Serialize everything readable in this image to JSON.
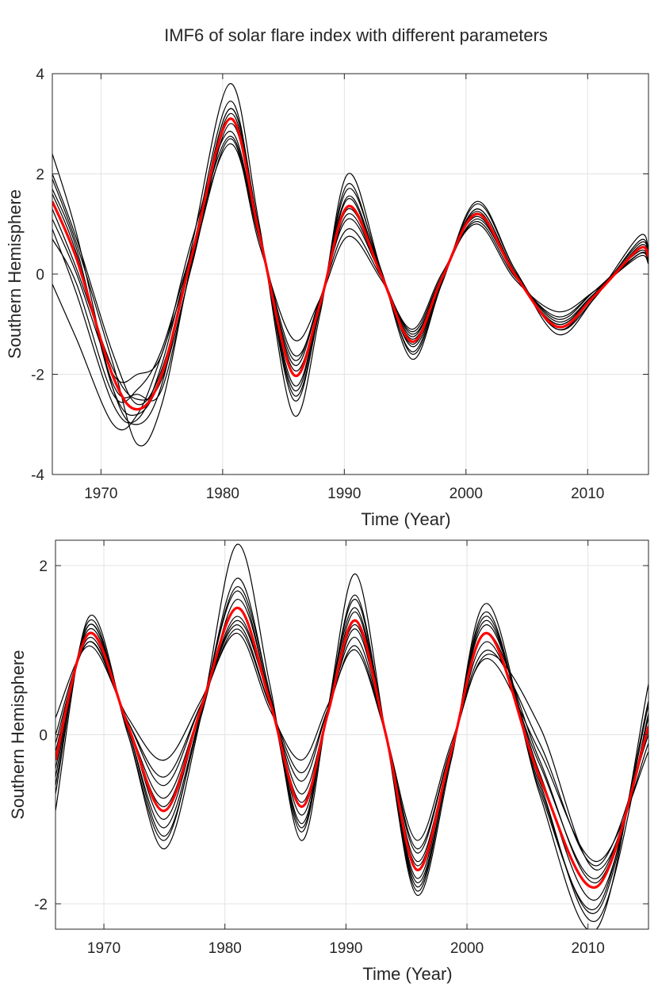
{
  "figure_title": "IMF6 of solar flare index with different parameters",
  "chart_data": [
    {
      "type": "line",
      "xlabel": "Time (Year)",
      "ylabel": "Southern Hemisphere",
      "xlim": [
        1966,
        2015
      ],
      "ylim": [
        -4,
        4
      ],
      "xticks": [
        1970,
        1980,
        1990,
        2000,
        2010
      ],
      "xtick_labels": [
        "1970",
        "1980",
        "1990",
        "2000",
        "2010"
      ],
      "yticks": [
        -4,
        -2,
        0,
        2,
        4
      ],
      "ytick_labels": [
        "-4",
        "-2",
        "0",
        "2",
        "4"
      ],
      "grid": true,
      "colors": {
        "ensemble": "#000000",
        "mean": "#ff0000"
      },
      "mean_series": {
        "x": [
          1966,
          1968,
          1971,
          1973,
          1975,
          1977.5,
          1980.6,
          1983,
          1985.8,
          1988,
          1990.3,
          1993,
          1995.6,
          1998,
          2000.9,
          2004,
          2007.5,
          2010.5,
          2014.2,
          2015
        ],
        "y": [
          1.45,
          0.3,
          -2.05,
          -2.7,
          -2.0,
          0.4,
          3.1,
          0.8,
          -2.0,
          -0.6,
          1.35,
          0.0,
          -1.35,
          -0.1,
          1.2,
          0.0,
          -1.05,
          -0.45,
          0.5,
          0.35
        ]
      },
      "ensemble_series": [
        {
          "y": [
            1.45,
            0.3,
            -2.05,
            -2.7,
            -2.0,
            0.4,
            3.1,
            0.8,
            -2.0,
            -0.6,
            1.35,
            0.0,
            -1.35,
            -0.1,
            1.2,
            0.0,
            -1.05,
            -0.45,
            0.5,
            0.35
          ]
        },
        {
          "y": [
            2.4,
            0.8,
            -2.3,
            -3.0,
            -2.2,
            0.6,
            3.8,
            1.0,
            -2.8,
            -0.8,
            2.0,
            0.1,
            -1.7,
            -0.2,
            1.45,
            0.1,
            -1.2,
            -0.5,
            0.75,
            0.5
          ]
        },
        {
          "y": [
            -0.2,
            -1.3,
            -3.0,
            -2.8,
            -1.6,
            0.3,
            2.7,
            0.6,
            -1.3,
            -0.5,
            0.75,
            -0.1,
            -1.1,
            0.0,
            1.0,
            -0.1,
            -0.75,
            -0.35,
            0.35,
            0.2
          ]
        },
        {
          "y": [
            0.7,
            -0.2,
            -2.4,
            -2.3,
            -1.5,
            0.5,
            2.6,
            0.7,
            -1.8,
            -0.5,
            1.1,
            0.0,
            -1.2,
            -0.1,
            1.1,
            0.0,
            -0.95,
            -0.4,
            0.4,
            0.3
          ]
        },
        {
          "y": [
            1.9,
            0.6,
            -1.8,
            -3.4,
            -2.6,
            0.3,
            3.3,
            0.9,
            -2.5,
            -0.7,
            1.7,
            0.1,
            -1.6,
            -0.2,
            1.4,
            0.1,
            -1.1,
            -0.5,
            0.65,
            0.45
          ]
        },
        {
          "y": [
            1.1,
            0.0,
            -2.0,
            -2.0,
            -1.6,
            0.7,
            2.85,
            0.75,
            -1.6,
            -0.55,
            1.2,
            0.0,
            -1.25,
            -0.05,
            1.15,
            0.0,
            -0.9,
            -0.35,
            0.45,
            0.3
          ]
        },
        {
          "y": [
            1.7,
            0.5,
            -2.3,
            -2.8,
            -2.0,
            0.45,
            3.45,
            0.85,
            -2.3,
            -0.65,
            1.55,
            0.05,
            -1.45,
            -0.15,
            1.3,
            0.05,
            -1.05,
            -0.45,
            0.55,
            0.4
          ]
        },
        {
          "y": [
            1.3,
            0.1,
            -1.9,
            -2.5,
            -2.1,
            0.2,
            3.0,
            0.8,
            -1.9,
            -0.6,
            1.3,
            0.0,
            -1.3,
            -0.1,
            1.2,
            0.0,
            -1.0,
            -0.4,
            0.5,
            0.35
          ]
        },
        {
          "y": [
            2.0,
            0.7,
            -1.6,
            -2.6,
            -1.9,
            0.35,
            3.3,
            0.9,
            -2.4,
            -0.7,
            1.8,
            0.05,
            -1.55,
            -0.15,
            1.3,
            0.05,
            -1.1,
            -0.45,
            0.6,
            0.45
          ]
        },
        {
          "y": [
            0.9,
            -0.4,
            -2.6,
            -2.9,
            -1.8,
            0.5,
            2.75,
            0.7,
            -1.7,
            -0.5,
            0.9,
            -0.05,
            -1.15,
            -0.05,
            1.05,
            -0.05,
            -0.85,
            -0.35,
            0.4,
            0.25
          ]
        },
        {
          "y": [
            1.6,
            0.4,
            -2.2,
            -2.4,
            -2.3,
            0.25,
            3.2,
            0.85,
            -2.2,
            -0.65,
            1.5,
            0.0,
            -1.4,
            -0.1,
            1.25,
            0.0,
            -1.0,
            -0.4,
            0.5,
            0.35
          ]
        }
      ]
    },
    {
      "type": "line",
      "xlabel": "Time (Year)",
      "ylabel": "Southern Hemisphere",
      "xlim": [
        1966,
        2015
      ],
      "ylim": [
        -2.3,
        2.3
      ],
      "xticks": [
        1970,
        1980,
        1990,
        2000,
        2010
      ],
      "xtick_labels": [
        "1970",
        "1980",
        "1990",
        "2000",
        "2010"
      ],
      "yticks": [
        -2,
        0,
        2
      ],
      "ytick_labels": [
        "-2",
        "0",
        "2"
      ],
      "grid": true,
      "colors": {
        "ensemble": "#000000",
        "mean": "#ff0000"
      },
      "mean_series": {
        "x": [
          1966,
          1968.8,
          1972,
          1975,
          1978,
          1981,
          1983.7,
          1986.3,
          1988.5,
          1990.8,
          1993.3,
          1995.9,
          1998.7,
          2001.7,
          2006,
          2010.7,
          2015
        ],
        "y": [
          -0.3,
          1.2,
          0.1,
          -0.9,
          0.3,
          1.5,
          0.4,
          -0.85,
          0.25,
          1.35,
          0.0,
          -1.6,
          -0.2,
          1.2,
          -0.5,
          -1.8,
          0.1
        ]
      },
      "ensemble_series": [
        {
          "y": [
            -0.3,
            1.2,
            0.1,
            -0.9,
            0.3,
            1.5,
            0.4,
            -0.85,
            0.25,
            1.35,
            0.0,
            -1.6,
            -0.2,
            1.2,
            -0.5,
            -1.8,
            0.1
          ]
        },
        {
          "y": [
            -0.9,
            1.4,
            0.0,
            -1.35,
            0.2,
            2.25,
            0.6,
            -1.25,
            0.3,
            1.9,
            0.0,
            -1.9,
            -0.3,
            1.55,
            -0.7,
            -2.3,
            0.6
          ]
        },
        {
          "y": [
            0.2,
            1.05,
            0.2,
            -0.3,
            0.4,
            1.2,
            0.3,
            -0.3,
            0.35,
            1.0,
            0.0,
            -1.25,
            -0.1,
            0.9,
            -0.2,
            -1.5,
            -0.2
          ]
        },
        {
          "y": [
            -0.6,
            1.3,
            0.05,
            -1.1,
            0.25,
            1.85,
            0.5,
            -1.05,
            0.3,
            1.6,
            0.0,
            -1.8,
            -0.25,
            1.4,
            -0.6,
            -2.1,
            0.35
          ]
        },
        {
          "y": [
            -0.1,
            1.1,
            0.15,
            -0.6,
            0.35,
            1.3,
            0.35,
            -0.55,
            0.3,
            1.15,
            0.0,
            -1.4,
            -0.15,
            1.0,
            -0.1,
            -1.55,
            0.0
          ]
        },
        {
          "y": [
            -0.4,
            1.25,
            0.1,
            -1.0,
            0.3,
            1.7,
            0.45,
            -0.95,
            0.25,
            1.45,
            0.0,
            -1.7,
            -0.2,
            1.3,
            -0.45,
            -1.95,
            0.2
          ]
        },
        {
          "y": [
            -0.2,
            1.15,
            0.1,
            -0.75,
            0.3,
            1.4,
            0.4,
            -0.7,
            0.25,
            1.25,
            0.0,
            -1.5,
            -0.2,
            1.1,
            -0.35,
            -1.7,
            0.05
          ]
        },
        {
          "y": [
            -0.5,
            1.3,
            0.05,
            -1.2,
            0.2,
            1.6,
            0.45,
            -1.15,
            0.3,
            1.5,
            0.0,
            -1.85,
            -0.25,
            1.35,
            -0.55,
            -2.2,
            0.25
          ]
        },
        {
          "y": [
            -0.3,
            1.2,
            0.1,
            -0.85,
            0.3,
            1.35,
            0.4,
            -0.8,
            0.25,
            1.3,
            0.0,
            -1.55,
            -0.2,
            1.2,
            -0.3,
            -1.75,
            0.1
          ]
        },
        {
          "y": [
            -0.7,
            1.35,
            0.0,
            -1.25,
            0.25,
            1.75,
            0.5,
            -1.1,
            0.3,
            1.65,
            0.0,
            -1.75,
            -0.25,
            1.45,
            -0.65,
            -2.05,
            0.4
          ]
        },
        {
          "y": [
            0.0,
            1.1,
            0.15,
            -0.5,
            0.35,
            1.25,
            0.35,
            -0.45,
            0.3,
            1.05,
            0.0,
            -1.35,
            -0.15,
            0.95,
            0.1,
            -1.6,
            -0.1
          ]
        }
      ]
    }
  ]
}
